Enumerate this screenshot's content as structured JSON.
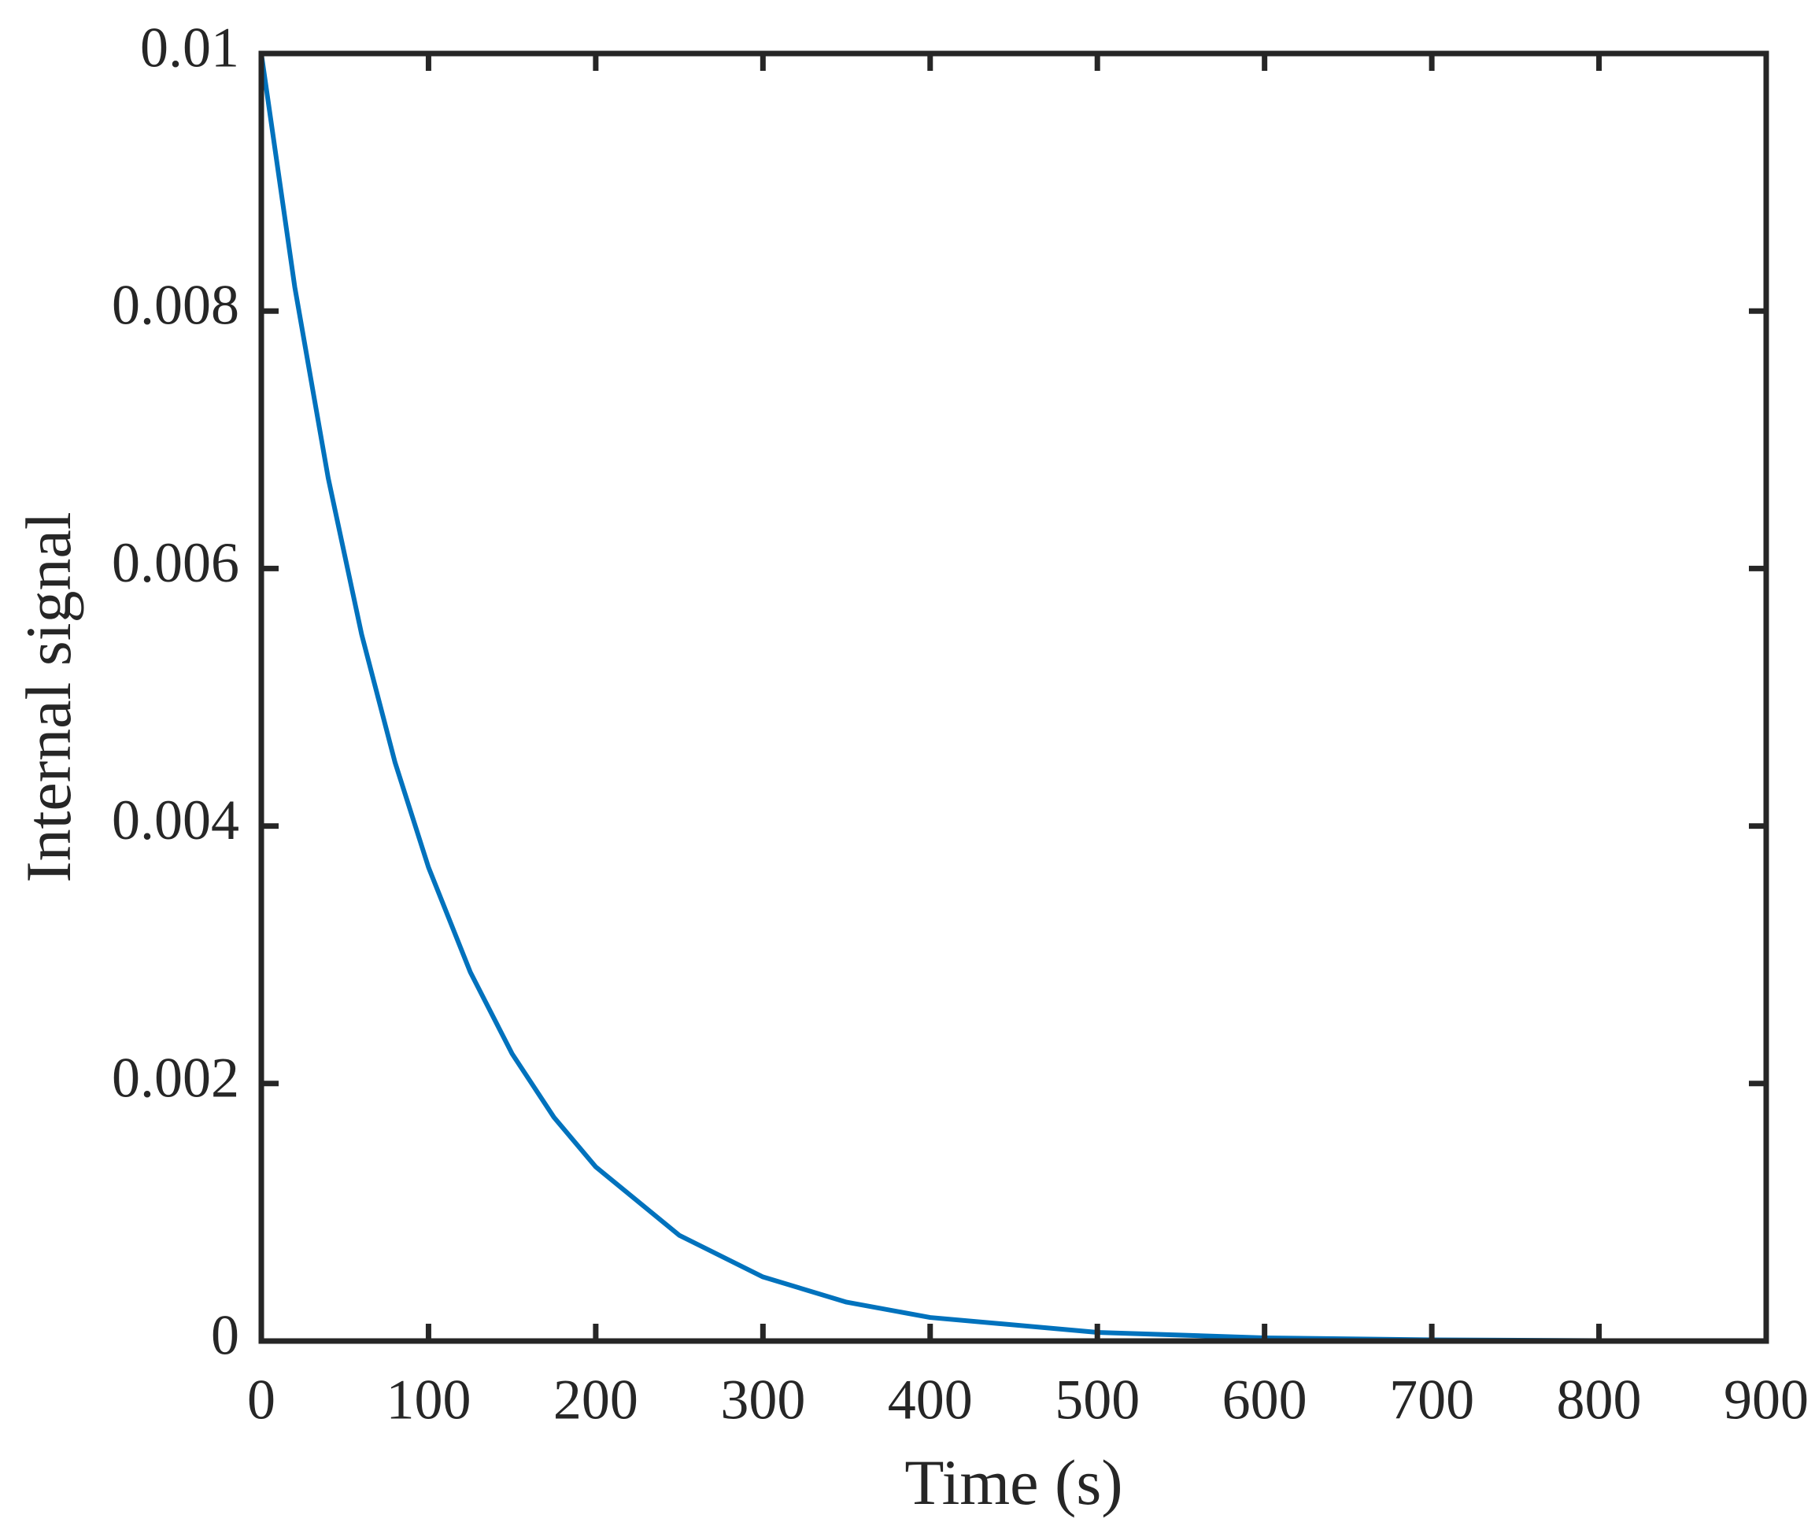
{
  "chart_data": {
    "type": "line",
    "x_label": "Time (s)",
    "y_label": "Internal signal",
    "x": [
      0,
      20,
      40,
      60,
      80,
      100,
      125,
      150,
      175,
      200,
      250,
      300,
      350,
      400,
      500,
      600,
      700,
      800,
      900
    ],
    "series": [
      {
        "color": "#0072bd",
        "values": [
          0.01,
          0.008187,
          0.006703,
          0.005488,
          0.004493,
          0.003679,
          0.002865,
          0.002231,
          0.001738,
          0.001353,
          0.000821,
          0.000498,
          0.000302,
          0.000183,
          6.74e-05,
          2.48e-05,
          9.1e-06,
          3.4e-06,
          1.2e-06
        ]
      }
    ],
    "xlim": [
      0,
      900
    ],
    "xticks": [
      0,
      100,
      200,
      300,
      400,
      500,
      600,
      700,
      800,
      900
    ],
    "ylim": [
      0,
      0.01
    ],
    "yticks": [
      0,
      0.002,
      0.004,
      0.006,
      0.008,
      0.01
    ],
    "grid": false
  }
}
